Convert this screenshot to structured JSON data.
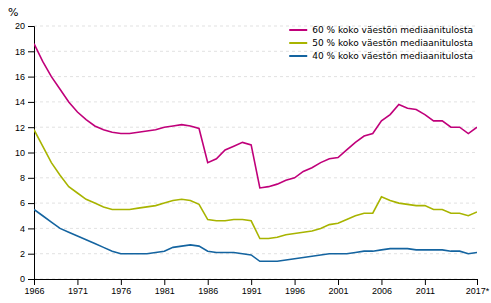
{
  "chart_data": {
    "type": "line",
    "ylabel": "%",
    "x": [
      1966,
      1967,
      1968,
      1969,
      1970,
      1971,
      1972,
      1973,
      1974,
      1975,
      1976,
      1977,
      1978,
      1979,
      1980,
      1981,
      1982,
      1983,
      1984,
      1985,
      1986,
      1987,
      1988,
      1989,
      1990,
      1991,
      1992,
      1993,
      1994,
      1995,
      1996,
      1997,
      1998,
      1999,
      2000,
      2001,
      2002,
      2003,
      2004,
      2005,
      2006,
      2007,
      2008,
      2009,
      2010,
      2011,
      2012,
      2013,
      2014,
      2015,
      2016,
      2017
    ],
    "series": [
      {
        "name": "60 % koko väestön mediaanitulosta",
        "color": "#c0007a",
        "values": [
          18.6,
          17.2,
          16.0,
          15.0,
          14.0,
          13.2,
          12.6,
          12.1,
          11.8,
          11.6,
          11.5,
          11.5,
          11.6,
          11.7,
          11.8,
          12.0,
          12.1,
          12.2,
          12.1,
          11.9,
          9.2,
          9.5,
          10.2,
          10.5,
          10.8,
          10.6,
          7.2,
          7.3,
          7.5,
          7.8,
          8.0,
          8.5,
          8.8,
          9.2,
          9.5,
          9.6,
          10.2,
          10.8,
          11.3,
          11.5,
          12.5,
          13.0,
          13.8,
          13.5,
          13.4,
          13.0,
          12.5,
          12.5,
          12.0,
          12.0,
          11.5,
          12.0
        ]
      },
      {
        "name": "50 % koko väestön mediaanitulosta",
        "color": "#a8b400",
        "values": [
          11.8,
          10.5,
          9.2,
          8.2,
          7.3,
          6.8,
          6.3,
          6.0,
          5.7,
          5.5,
          5.5,
          5.5,
          5.6,
          5.7,
          5.8,
          6.0,
          6.2,
          6.3,
          6.2,
          5.9,
          4.7,
          4.6,
          4.6,
          4.7,
          4.7,
          4.6,
          3.2,
          3.2,
          3.3,
          3.5,
          3.6,
          3.7,
          3.8,
          4.0,
          4.3,
          4.4,
          4.7,
          5.0,
          5.2,
          5.2,
          6.5,
          6.2,
          6.0,
          5.9,
          5.8,
          5.8,
          5.5,
          5.5,
          5.2,
          5.2,
          5.0,
          5.3
        ]
      },
      {
        "name": "40 % koko väestön mediaanitulosta",
        "color": "#1464a0",
        "values": [
          5.5,
          5.0,
          4.5,
          4.0,
          3.7,
          3.4,
          3.1,
          2.8,
          2.5,
          2.2,
          2.0,
          2.0,
          2.0,
          2.0,
          2.1,
          2.2,
          2.5,
          2.6,
          2.7,
          2.6,
          2.2,
          2.1,
          2.1,
          2.1,
          2.0,
          1.9,
          1.4,
          1.4,
          1.4,
          1.5,
          1.6,
          1.7,
          1.8,
          1.9,
          2.0,
          2.0,
          2.0,
          2.1,
          2.2,
          2.2,
          2.3,
          2.4,
          2.4,
          2.4,
          2.3,
          2.3,
          2.3,
          2.3,
          2.2,
          2.2,
          2.0,
          2.1
        ]
      }
    ],
    "xlim": [
      1966,
      2017
    ],
    "xticks": [
      1966,
      1971,
      1976,
      1981,
      1986,
      1991,
      1996,
      2001,
      2006,
      2011,
      {
        "value": 2017,
        "label": "2017*"
      }
    ],
    "ylim": [
      0,
      20
    ],
    "yticks": [
      0,
      2,
      4,
      6,
      8,
      10,
      12,
      14,
      16,
      18,
      20
    ],
    "grid": true,
    "legend": "upper right"
  }
}
